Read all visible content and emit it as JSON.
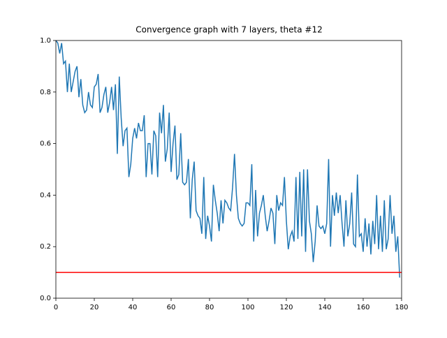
{
  "chart_data": {
    "type": "line",
    "title": "Convergence graph with 7 layers, theta #12",
    "xlim": [
      0,
      180
    ],
    "xticks": [
      0,
      20,
      40,
      60,
      80,
      100,
      120,
      140,
      160,
      180
    ],
    "ylim": [
      0,
      1
    ],
    "yticks": [
      {
        "value": 0,
        "label": "0.0"
      },
      0.2,
      0.4,
      0.6,
      0.8,
      {
        "value": 1,
        "label": "1.0"
      }
    ],
    "series": [
      {
        "color": "#1f77b4",
        "x": [
          0,
          1,
          2,
          3,
          4,
          5,
          6,
          7,
          8,
          9,
          10,
          11,
          12,
          13,
          14,
          15,
          16,
          17,
          18,
          19,
          20,
          21,
          22,
          23,
          24,
          25,
          26,
          27,
          28,
          29,
          30,
          31,
          32,
          33,
          34,
          35,
          36,
          37,
          38,
          39,
          40,
          41,
          42,
          43,
          44,
          45,
          46,
          47,
          48,
          49,
          50,
          51,
          52,
          53,
          54,
          55,
          56,
          57,
          58,
          59,
          60,
          61,
          62,
          63,
          64,
          65,
          66,
          67,
          68,
          69,
          70,
          71,
          72,
          73,
          74,
          75,
          76,
          77,
          78,
          79,
          80,
          81,
          82,
          83,
          84,
          85,
          86,
          87,
          88,
          89,
          90,
          91,
          92,
          93,
          94,
          95,
          96,
          97,
          98,
          99,
          100,
          101,
          102,
          103,
          104,
          105,
          106,
          107,
          108,
          109,
          110,
          111,
          112,
          113,
          114,
          115,
          116,
          117,
          118,
          119,
          120,
          121,
          122,
          123,
          124,
          125,
          126,
          127,
          128,
          129,
          130,
          131,
          132,
          133,
          134,
          135,
          136,
          137,
          138,
          139,
          140,
          141,
          142,
          143,
          144,
          145,
          146,
          147,
          148,
          149,
          150,
          151,
          152,
          153,
          154,
          155,
          156,
          157,
          158,
          159,
          160,
          161,
          162,
          163,
          164,
          165,
          166,
          167,
          168,
          169,
          170,
          171,
          172,
          173,
          174,
          175,
          176,
          177,
          178,
          179
        ],
        "values": [
          1.0,
          0.99,
          0.95,
          0.99,
          0.91,
          0.92,
          0.8,
          0.91,
          0.8,
          0.84,
          0.88,
          0.9,
          0.78,
          0.85,
          0.75,
          0.72,
          0.73,
          0.8,
          0.75,
          0.74,
          0.82,
          0.83,
          0.87,
          0.72,
          0.74,
          0.79,
          0.82,
          0.72,
          0.76,
          0.82,
          0.73,
          0.83,
          0.56,
          0.86,
          0.7,
          0.59,
          0.65,
          0.66,
          0.47,
          0.52,
          0.62,
          0.66,
          0.62,
          0.68,
          0.65,
          0.65,
          0.71,
          0.47,
          0.6,
          0.6,
          0.48,
          0.65,
          0.63,
          0.47,
          0.72,
          0.64,
          0.75,
          0.53,
          0.58,
          0.72,
          0.49,
          0.6,
          0.67,
          0.46,
          0.48,
          0.64,
          0.45,
          0.44,
          0.45,
          0.54,
          0.31,
          0.46,
          0.53,
          0.34,
          0.32,
          0.31,
          0.25,
          0.47,
          0.23,
          0.32,
          0.28,
          0.22,
          0.44,
          0.38,
          0.33,
          0.26,
          0.38,
          0.29,
          0.38,
          0.37,
          0.35,
          0.34,
          0.43,
          0.56,
          0.4,
          0.31,
          0.29,
          0.28,
          0.29,
          0.37,
          0.37,
          0.36,
          0.52,
          0.22,
          0.42,
          0.24,
          0.33,
          0.36,
          0.4,
          0.32,
          0.26,
          0.3,
          0.35,
          0.33,
          0.21,
          0.4,
          0.34,
          0.37,
          0.36,
          0.47,
          0.3,
          0.19,
          0.24,
          0.26,
          0.22,
          0.47,
          0.23,
          0.49,
          0.24,
          0.5,
          0.18,
          0.5,
          0.3,
          0.25,
          0.14,
          0.22,
          0.36,
          0.28,
          0.27,
          0.28,
          0.25,
          0.29,
          0.54,
          0.2,
          0.4,
          0.32,
          0.41,
          0.33,
          0.4,
          0.29,
          0.2,
          0.38,
          0.24,
          0.29,
          0.41,
          0.21,
          0.2,
          0.48,
          0.24,
          0.25,
          0.18,
          0.31,
          0.2,
          0.29,
          0.17,
          0.3,
          0.21,
          0.4,
          0.19,
          0.32,
          0.18,
          0.38,
          0.19,
          0.23,
          0.4,
          0.25,
          0.32,
          0.18,
          0.24,
          0.08
        ]
      },
      {
        "color": "#ff0000",
        "x": [
          0,
          180
        ],
        "values": [
          0.1,
          0.1
        ]
      }
    ]
  }
}
